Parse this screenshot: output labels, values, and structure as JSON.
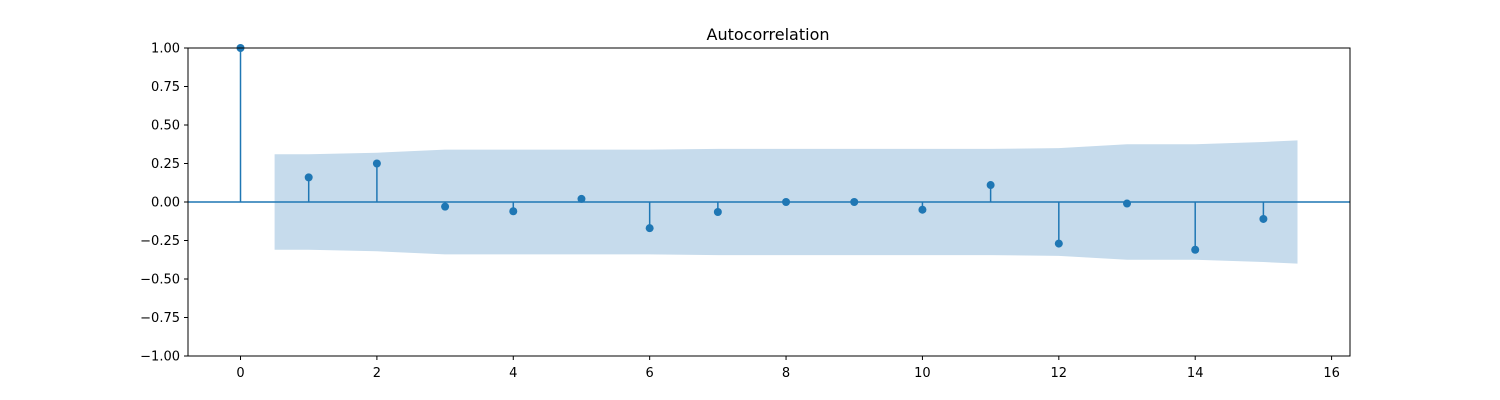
{
  "chart_data": {
    "type": "stem",
    "title": "Autocorrelation",
    "xlabel": "",
    "ylabel": "",
    "xlim": [
      -0.77,
      16.27
    ],
    "ylim": [
      -1.0,
      1.0
    ],
    "x_ticks": [
      0,
      2,
      4,
      6,
      8,
      10,
      12,
      14,
      16
    ],
    "x_tick_labels": [
      "0",
      "2",
      "4",
      "6",
      "8",
      "10",
      "12",
      "14",
      "16"
    ],
    "y_ticks": [
      1.0,
      0.75,
      0.5,
      0.25,
      0.0,
      -0.25,
      -0.5,
      -0.75,
      -1.0
    ],
    "y_tick_labels": [
      "1.00",
      "0.75",
      "0.50",
      "0.25",
      "0.00",
      "−0.25",
      "−0.50",
      "−0.75",
      "−1.00"
    ],
    "grid": false,
    "lags": [
      0,
      1,
      2,
      3,
      4,
      5,
      6,
      7,
      8,
      9,
      10,
      11,
      12,
      13,
      14,
      15
    ],
    "values": [
      1.0,
      0.16,
      0.25,
      -0.03,
      -0.06,
      0.02,
      -0.17,
      -0.065,
      0.0,
      0.0,
      -0.05,
      0.11,
      -0.27,
      -0.01,
      -0.31,
      -0.11
    ],
    "confidence_band": {
      "x": [
        0.5,
        1,
        2,
        3,
        4,
        5,
        6,
        7,
        8,
        9,
        10,
        11,
        12,
        13,
        14,
        15,
        15.5
      ],
      "upper": [
        0.31,
        0.31,
        0.32,
        0.34,
        0.34,
        0.34,
        0.34,
        0.345,
        0.345,
        0.345,
        0.345,
        0.345,
        0.35,
        0.375,
        0.375,
        0.39,
        0.4
      ],
      "lower": [
        -0.31,
        -0.31,
        -0.32,
        -0.34,
        -0.34,
        -0.34,
        -0.34,
        -0.345,
        -0.345,
        -0.345,
        -0.345,
        -0.345,
        -0.35,
        -0.375,
        -0.375,
        -0.39,
        -0.4
      ]
    },
    "colors": {
      "stem": "#1f77b4",
      "band": "#c6dbec",
      "zero_line": "#1f77b4",
      "axes": "#000000"
    }
  }
}
